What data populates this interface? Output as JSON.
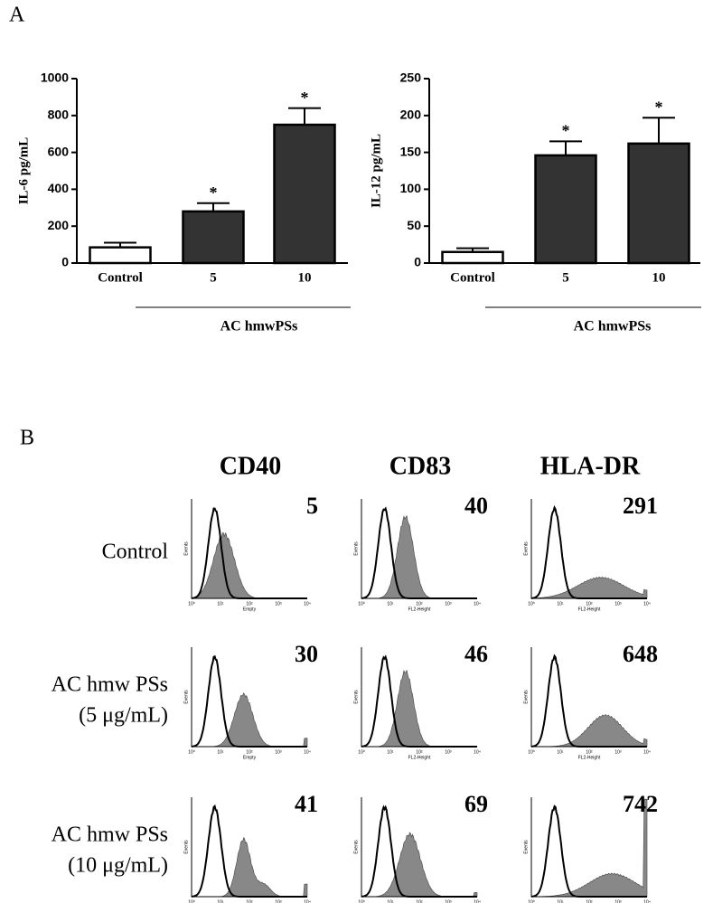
{
  "panel_labels": [
    "A",
    "B"
  ],
  "chart_data": [
    {
      "type": "bar",
      "y_label": "IL-6 pg/mL",
      "categories": [
        "Control",
        "5",
        "10"
      ],
      "values": [
        85,
        280,
        750
      ],
      "errors": [
        25,
        45,
        90
      ],
      "colors": [
        "#ffffff",
        "#333333",
        "#333333"
      ],
      "significance": [
        null,
        "*",
        "*"
      ],
      "group_label": "AC hmwPSs",
      "ylim": [
        0,
        1000
      ],
      "yticks": [
        0,
        200,
        400,
        600,
        800,
        1000
      ]
    },
    {
      "type": "bar",
      "y_label": "IL-12 pg/mL",
      "categories": [
        "Control",
        "5",
        "10"
      ],
      "values": [
        15,
        146,
        162
      ],
      "errors": [
        5,
        19,
        35
      ],
      "colors": [
        "#ffffff",
        "#333333",
        "#333333"
      ],
      "significance": [
        null,
        "*",
        "*"
      ],
      "group_label": "AC hmwPSs",
      "ylim": [
        0,
        250
      ],
      "yticks": [
        0,
        50,
        100,
        150,
        200,
        250
      ]
    }
  ],
  "flow": {
    "columns": [
      {
        "marker": "CD40",
        "x_label": "Empty"
      },
      {
        "marker": "CD83",
        "x_label": "FL2-Height"
      },
      {
        "marker": "HLA-DR",
        "x_label": "FL2-Height"
      }
    ],
    "rows": [
      {
        "label": [
          "Control"
        ],
        "mfi": [
          "5",
          "40",
          "291"
        ]
      },
      {
        "label": [
          "AC hmw PSs",
          "(5 μg/mL)"
        ],
        "mfi": [
          "30",
          "46",
          "648"
        ]
      },
      {
        "label": [
          "AC hmw PSs",
          "(10 μg/mL)"
        ],
        "mfi": [
          "41",
          "69",
          "742"
        ]
      }
    ],
    "y_label": "Events",
    "x_ticks": [
      "10⁰",
      "10¹",
      "10²",
      "10³",
      "10⁴"
    ]
  }
}
